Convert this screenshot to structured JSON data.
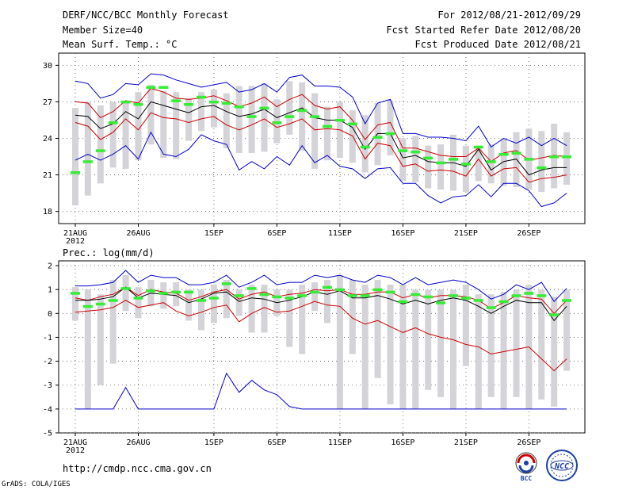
{
  "header": {
    "title": "DERF/NCC/BCC Monthly Forecast",
    "member_size": "Member Size=40",
    "variable": "Mean Surf. Temp.: °C",
    "period": "For 2012/08/21-2012/09/29",
    "start_date": "Fcst Started Refer Date 2012/08/20",
    "produced_date": "Fcst Produced Date 2012/08/21"
  },
  "footer": {
    "url": "http://cmdp.ncc.cma.gov.cn",
    "grads": "GrADS: COLA/IGES"
  },
  "logos": {
    "bcc": "BCC",
    "ncc": "NCC"
  },
  "colors": {
    "envelope": "#0000cc",
    "spread": "#cc0000",
    "mean": "#000000",
    "obs": "#33ee33",
    "bar": "#d3d3d8"
  },
  "chart_data": [
    {
      "type": "line",
      "title": "Mean Surf. Temp.: °C",
      "x_days": 40,
      "x_tick_labels": [
        "21AUG",
        "26AUG",
        "1SEP",
        "6SEP",
        "11SEP",
        "16SEP",
        "21SEP",
        "26SEP"
      ],
      "x_tick_days": [
        0,
        5,
        11,
        16,
        21,
        26,
        31,
        36
      ],
      "x_year_label": "2012",
      "ylim": [
        17,
        31
      ],
      "yticks": [
        18,
        21,
        24,
        27,
        30
      ],
      "ytick_labels": [
        "18",
        "21",
        "24",
        "27",
        "30"
      ],
      "grid": true,
      "series": [
        {
          "name": "max",
          "color": "#0000cc",
          "values": [
            28.7,
            28.5,
            27.3,
            27.6,
            28.5,
            28.4,
            29.3,
            29.2,
            28.8,
            28.5,
            28.2,
            28.4,
            28.6,
            27.8,
            28.0,
            28.5,
            27.8,
            29.0,
            29.2,
            28.3,
            28.3,
            28.2,
            27.4,
            25.2,
            26.9,
            27.2,
            24.4,
            24.4,
            24.1,
            24.1,
            24.0,
            23.8,
            25.0,
            23.3,
            24.0,
            23.6,
            24.1,
            23.4,
            24.0,
            23.4
          ]
        },
        {
          "name": "upper",
          "color": "#cc0000",
          "values": [
            27.0,
            26.9,
            25.7,
            26.2,
            27.1,
            26.9,
            28.1,
            27.8,
            27.3,
            27.2,
            27.3,
            27.5,
            27.1,
            26.6,
            26.9,
            27.4,
            26.6,
            27.2,
            27.6,
            26.7,
            26.4,
            26.6,
            25.5,
            23.9,
            25.1,
            25.3,
            23.2,
            23.2,
            22.9,
            22.6,
            22.5,
            22.5,
            23.2,
            22.1,
            22.8,
            23.0,
            22.2,
            22.4,
            22.6,
            22.5
          ]
        },
        {
          "name": "mean",
          "color": "#000000",
          "values": [
            25.9,
            25.8,
            24.8,
            25.2,
            26.2,
            25.6,
            27.0,
            26.7,
            26.4,
            26.1,
            26.6,
            26.7,
            26.2,
            25.8,
            26.0,
            26.4,
            25.7,
            26.1,
            26.5,
            25.7,
            25.5,
            25.5,
            24.9,
            23.1,
            24.4,
            24.4,
            22.4,
            22.6,
            22.1,
            22.0,
            22.0,
            21.7,
            23.1,
            21.4,
            22.1,
            22.3,
            21.0,
            21.4,
            21.6,
            21.6
          ]
        },
        {
          "name": "lower",
          "color": "#cc0000",
          "values": [
            25.3,
            25.0,
            23.9,
            24.5,
            25.6,
            24.7,
            26.1,
            25.7,
            25.6,
            25.3,
            25.6,
            25.8,
            25.1,
            24.7,
            25.1,
            25.6,
            24.9,
            25.2,
            25.6,
            24.7,
            24.8,
            24.7,
            24.2,
            22.3,
            23.6,
            23.4,
            21.7,
            21.9,
            21.3,
            21.4,
            21.3,
            20.9,
            22.3,
            20.9,
            21.5,
            21.6,
            20.4,
            20.7,
            20.8,
            21.0
          ]
        },
        {
          "name": "min",
          "color": "#0000cc",
          "values": [
            22.2,
            22.7,
            22.2,
            22.7,
            23.4,
            22.3,
            24.5,
            22.7,
            22.5,
            23.1,
            24.3,
            23.8,
            23.5,
            21.4,
            22.1,
            21.5,
            22.5,
            21.8,
            23.4,
            22.0,
            22.6,
            21.7,
            21.5,
            20.7,
            21.5,
            21.6,
            20.3,
            20.3,
            19.3,
            18.7,
            19.2,
            19.3,
            20.2,
            19.2,
            20.3,
            20.3,
            19.7,
            18.4,
            18.7,
            19.5
          ]
        }
      ],
      "bars": [
        [
          18.5,
          26.5
        ],
        [
          19.3,
          27.0
        ],
        [
          20.3,
          26.7
        ],
        [
          21.6,
          27.0
        ],
        [
          21.5,
          27.1
        ],
        [
          22.2,
          27.8
        ],
        [
          23.5,
          28.4
        ],
        [
          22.4,
          27.9
        ],
        [
          22.3,
          27.8
        ],
        [
          23.8,
          27.3
        ],
        [
          24.6,
          27.8
        ],
        [
          24.9,
          28.0
        ],
        [
          23.2,
          27.7
        ],
        [
          22.8,
          28.3
        ],
        [
          22.8,
          28.3
        ],
        [
          22.9,
          28.5
        ],
        [
          23.6,
          27.2
        ],
        [
          24.3,
          28.7
        ],
        [
          23.0,
          28.6
        ],
        [
          21.5,
          27.7
        ],
        [
          22.2,
          26.6
        ],
        [
          22.4,
          27.0
        ],
        [
          22.0,
          26.3
        ],
        [
          21.2,
          25.9
        ],
        [
          21.8,
          26.9
        ],
        [
          22.6,
          27.1
        ],
        [
          20.5,
          24.0
        ],
        [
          20.4,
          24.2
        ],
        [
          19.9,
          23.4
        ],
        [
          19.8,
          23.5
        ],
        [
          19.7,
          24.3
        ],
        [
          19.6,
          23.4
        ],
        [
          20.5,
          23.4
        ],
        [
          20.3,
          23.5
        ],
        [
          20.1,
          24.0
        ],
        [
          20.0,
          24.5
        ],
        [
          19.8,
          24.8
        ],
        [
          19.6,
          24.6
        ],
        [
          19.9,
          25.2
        ],
        [
          20.2,
          24.5
        ]
      ],
      "obs": [
        21.2,
        22.1,
        23.0,
        25.3,
        27.0,
        26.8,
        28.2,
        28.2,
        27.1,
        26.8,
        27.4,
        27.0,
        26.9,
        26.6,
        25.8,
        26.5,
        25.3,
        25.8,
        26.3,
        25.8,
        25.0,
        25.5,
        25.2,
        23.3,
        24.1,
        24.4,
        23.0,
        22.9,
        22.4,
        22.0,
        22.3,
        21.9,
        23.3,
        22.1,
        22.7,
        22.8,
        22.3,
        21.6,
        22.5,
        22.5
      ]
    },
    {
      "type": "line",
      "title": "Prec.: log(mm/d)",
      "x_days": 40,
      "x_tick_labels": [
        "21AUG",
        "26AUG",
        "1SEP",
        "6SEP",
        "11SEP",
        "16SEP",
        "21SEP",
        "26SEP"
      ],
      "x_tick_days": [
        0,
        5,
        11,
        16,
        21,
        26,
        31,
        36
      ],
      "x_year_label": "2012",
      "ylim": [
        -5,
        2.2
      ],
      "yticks": [
        -5,
        -4,
        -3,
        -2,
        -1,
        0,
        1,
        2
      ],
      "ytick_labels": [
        "-5",
        "-4",
        "-3",
        "-2",
        "-1",
        "0",
        "1",
        "2"
      ],
      "grid": true,
      "series": [
        {
          "name": "max",
          "color": "#0000cc",
          "values": [
            1.15,
            1.15,
            1.2,
            1.3,
            1.8,
            1.3,
            1.6,
            1.5,
            1.5,
            1.2,
            1.2,
            1.3,
            1.6,
            1.1,
            1.3,
            1.6,
            1.2,
            1.3,
            1.3,
            1.6,
            1.5,
            1.6,
            1.4,
            1.3,
            1.6,
            1.5,
            1.2,
            1.5,
            1.2,
            1.3,
            1.4,
            1.3,
            1.0,
            0.6,
            0.8,
            1.2,
            1.0,
            1.3,
            0.5,
            1.05
          ]
        },
        {
          "name": "upper",
          "color": "#cc0000",
          "values": [
            0.65,
            0.55,
            0.7,
            0.8,
            1.1,
            0.75,
            1.0,
            0.9,
            0.85,
            0.55,
            0.7,
            0.9,
            1.0,
            0.6,
            0.8,
            0.9,
            0.7,
            0.8,
            0.85,
            1.0,
            0.95,
            1.0,
            0.8,
            0.8,
            0.9,
            0.9,
            0.65,
            0.8,
            0.65,
            0.75,
            0.75,
            0.7,
            0.55,
            0.2,
            0.45,
            0.75,
            0.65,
            0.6,
            0.0,
            0.55
          ]
        },
        {
          "name": "mean",
          "color": "#000000",
          "values": [
            0.55,
            0.55,
            0.6,
            0.7,
            1.1,
            0.65,
            0.85,
            0.8,
            0.75,
            0.45,
            0.6,
            0.85,
            0.9,
            0.5,
            0.65,
            0.6,
            0.45,
            0.55,
            0.7,
            0.9,
            0.8,
            0.95,
            0.65,
            0.65,
            0.75,
            0.6,
            0.4,
            0.55,
            0.4,
            0.55,
            0.65,
            0.55,
            0.3,
            0.0,
            0.3,
            0.55,
            0.45,
            0.45,
            -0.3,
            0.3
          ]
        },
        {
          "name": "lower",
          "color": "#cc0000",
          "values": [
            0.05,
            0.1,
            0.15,
            0.25,
            0.55,
            0.25,
            0.35,
            0.45,
            0.1,
            -0.1,
            0.05,
            0.25,
            0.35,
            -0.35,
            0.0,
            0.25,
            0.05,
            0.1,
            0.3,
            0.5,
            0.35,
            0.3,
            -0.2,
            -0.45,
            -0.3,
            -0.55,
            -0.8,
            -0.6,
            -0.85,
            -1.0,
            -1.1,
            -1.3,
            -1.4,
            -1.7,
            -1.6,
            -1.5,
            -1.4,
            -1.9,
            -2.4,
            -1.9
          ]
        },
        {
          "name": "min",
          "color": "#0000cc",
          "values": [
            -4,
            -4,
            -4,
            -4,
            -3.1,
            -4,
            -4,
            -4,
            -4,
            -4,
            -4,
            -4,
            -2.5,
            -3.3,
            -2.8,
            -3.2,
            -3.4,
            -3.9,
            -4,
            -4,
            -4,
            -4,
            -4,
            -4,
            -4,
            -4,
            -4,
            -4,
            -4,
            -4,
            -4,
            -4,
            -4,
            -4,
            -4,
            -4,
            -4,
            -4,
            -4,
            -4
          ]
        }
      ],
      "bars": [
        [
          -0.3,
          1.1
        ],
        [
          -4.0,
          1.0
        ],
        [
          -3.0,
          0.8
        ],
        [
          -2.1,
          1.4
        ],
        [
          0.1,
          1.6
        ],
        [
          -0.2,
          1.1
        ],
        [
          0.3,
          1.4
        ],
        [
          0.2,
          1.3
        ],
        [
          0.3,
          1.3
        ],
        [
          -0.3,
          1.0
        ],
        [
          -0.7,
          1.0
        ],
        [
          -0.4,
          1.2
        ],
        [
          -0.2,
          1.4
        ],
        [
          -0.1,
          1.0
        ],
        [
          -0.8,
          1.2
        ],
        [
          -0.8,
          1.2
        ],
        [
          -0.1,
          1.0
        ],
        [
          -1.4,
          1.0
        ],
        [
          -1.7,
          1.2
        ],
        [
          0.1,
          1.3
        ],
        [
          -0.4,
          1.4
        ],
        [
          -4.0,
          1.6
        ],
        [
          -1.7,
          1.4
        ],
        [
          -4.0,
          1.2
        ],
        [
          -2.7,
          1.4
        ],
        [
          -3.8,
          1.2
        ],
        [
          -4.0,
          1.2
        ],
        [
          -4.0,
          1.0
        ],
        [
          -3.2,
          1.0
        ],
        [
          -3.5,
          1.0
        ],
        [
          -4.0,
          1.0
        ],
        [
          -2.2,
          1.2
        ],
        [
          -4.0,
          0.8
        ],
        [
          -3.5,
          0.8
        ],
        [
          -4.0,
          0.9
        ],
        [
          -3.5,
          1.0
        ],
        [
          -4.0,
          1.2
        ],
        [
          -3.6,
          1.0
        ],
        [
          -3.9,
          0.7
        ],
        [
          -2.4,
          1.0
        ]
      ],
      "obs": [
        0.85,
        0.3,
        0.4,
        0.55,
        1.05,
        0.65,
        0.95,
        0.85,
        0.9,
        0.9,
        0.55,
        0.65,
        1.25,
        0.75,
        1.05,
        0.8,
        0.7,
        0.65,
        0.75,
        0.9,
        1.1,
        1.0,
        0.75,
        0.75,
        1.0,
        0.9,
        0.5,
        0.8,
        0.7,
        0.45,
        0.75,
        0.65,
        0.55,
        0.25,
        0.5,
        0.75,
        0.85,
        0.75,
        -0.05,
        0.55
      ]
    }
  ]
}
